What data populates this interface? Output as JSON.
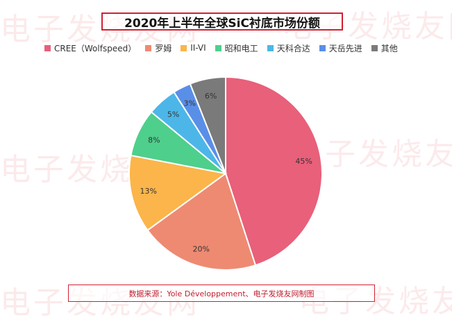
{
  "watermark": "电子发烧友网",
  "chart_data": {
    "type": "pie",
    "title": "2020年上半年全球SiC衬底市场份额",
    "legend_position": "top",
    "slices": [
      {
        "label": "CREE（Wolfspeed）",
        "value": 45,
        "display": "45%",
        "color": "#e8607a"
      },
      {
        "label": "罗姆",
        "value": 20,
        "display": "20%",
        "color": "#ee8a72"
      },
      {
        "label": "II-VI",
        "value": 13,
        "display": "13%",
        "color": "#fbb54a"
      },
      {
        "label": "昭和电工",
        "value": 8,
        "display": "8%",
        "color": "#4ecf8c"
      },
      {
        "label": "天科合达",
        "value": 5,
        "display": "5%",
        "color": "#4db6e8"
      },
      {
        "label": "天岳先进",
        "value": 3,
        "display": "3%",
        "color": "#5a8fe8"
      },
      {
        "label": "其他",
        "value": 6,
        "display": "6%",
        "color": "#7a7a7a"
      }
    ]
  },
  "source": "数据来源：Yole Développement、电子发烧友网制图"
}
